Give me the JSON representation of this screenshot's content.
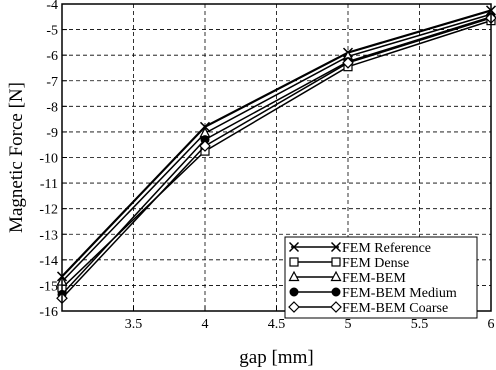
{
  "chart_data": {
    "type": "line",
    "title": "",
    "xlabel": "gap [mm]",
    "ylabel": "Magnetic Force [N]",
    "xlim": [
      3,
      6
    ],
    "ylim": [
      -16,
      -4
    ],
    "xticks": [
      3.5,
      4,
      4.5,
      5,
      5.5,
      6
    ],
    "xtick_labels": [
      "3.5",
      "4",
      "4.5",
      "5",
      "5.5",
      "6"
    ],
    "yticks": [
      -4,
      -5,
      -6,
      -7,
      -8,
      -9,
      -10,
      -11,
      -12,
      -13,
      -14,
      -15,
      -16
    ],
    "ytick_labels": [
      "-4",
      "-5",
      "-6",
      "-7",
      "-8",
      "-9",
      "-10",
      "-11",
      "-12",
      "-13",
      "-14",
      "-15",
      "-16"
    ],
    "grid": true,
    "grid_style": "dashed",
    "legend_position": "bottom-right",
    "x": [
      3,
      4,
      5,
      6
    ],
    "series": [
      {
        "name": "FEM Reference",
        "marker": "x",
        "values": [
          -14.65,
          -8.8,
          -5.9,
          -4.25
        ]
      },
      {
        "name": "FEM Dense",
        "marker": "square",
        "values": [
          -15.1,
          -9.75,
          -6.45,
          -4.65
        ]
      },
      {
        "name": "FEM-BEM",
        "marker": "triangle",
        "values": [
          -14.85,
          -9.05,
          -6.05,
          -4.4
        ]
      },
      {
        "name": "FEM-BEM Medium",
        "marker": "filled-circle",
        "values": [
          -15.35,
          -9.3,
          -6.25,
          -4.5
        ]
      },
      {
        "name": "FEM-BEM Coarse",
        "marker": "diamond",
        "values": [
          -15.5,
          -9.55,
          -6.3,
          -4.55
        ]
      }
    ]
  }
}
